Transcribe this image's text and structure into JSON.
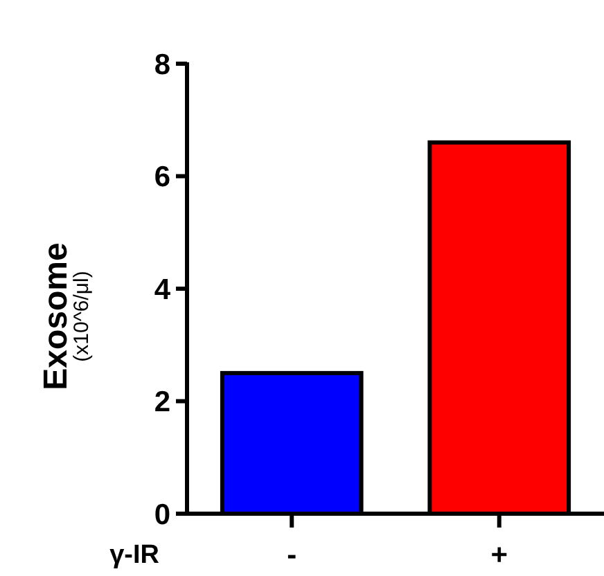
{
  "chart_data": {
    "type": "bar",
    "xlabel": "γ-IR",
    "ylabel": "Exosome\n(x10^6/μl)",
    "categories": [
      "-",
      "+"
    ],
    "values": [
      2.5,
      6.6
    ],
    "colors": [
      "#0000ff",
      "#ff0000"
    ],
    "ylim": [
      0,
      8
    ],
    "yticks": [
      0,
      2,
      4,
      6,
      8
    ],
    "grid": false
  }
}
